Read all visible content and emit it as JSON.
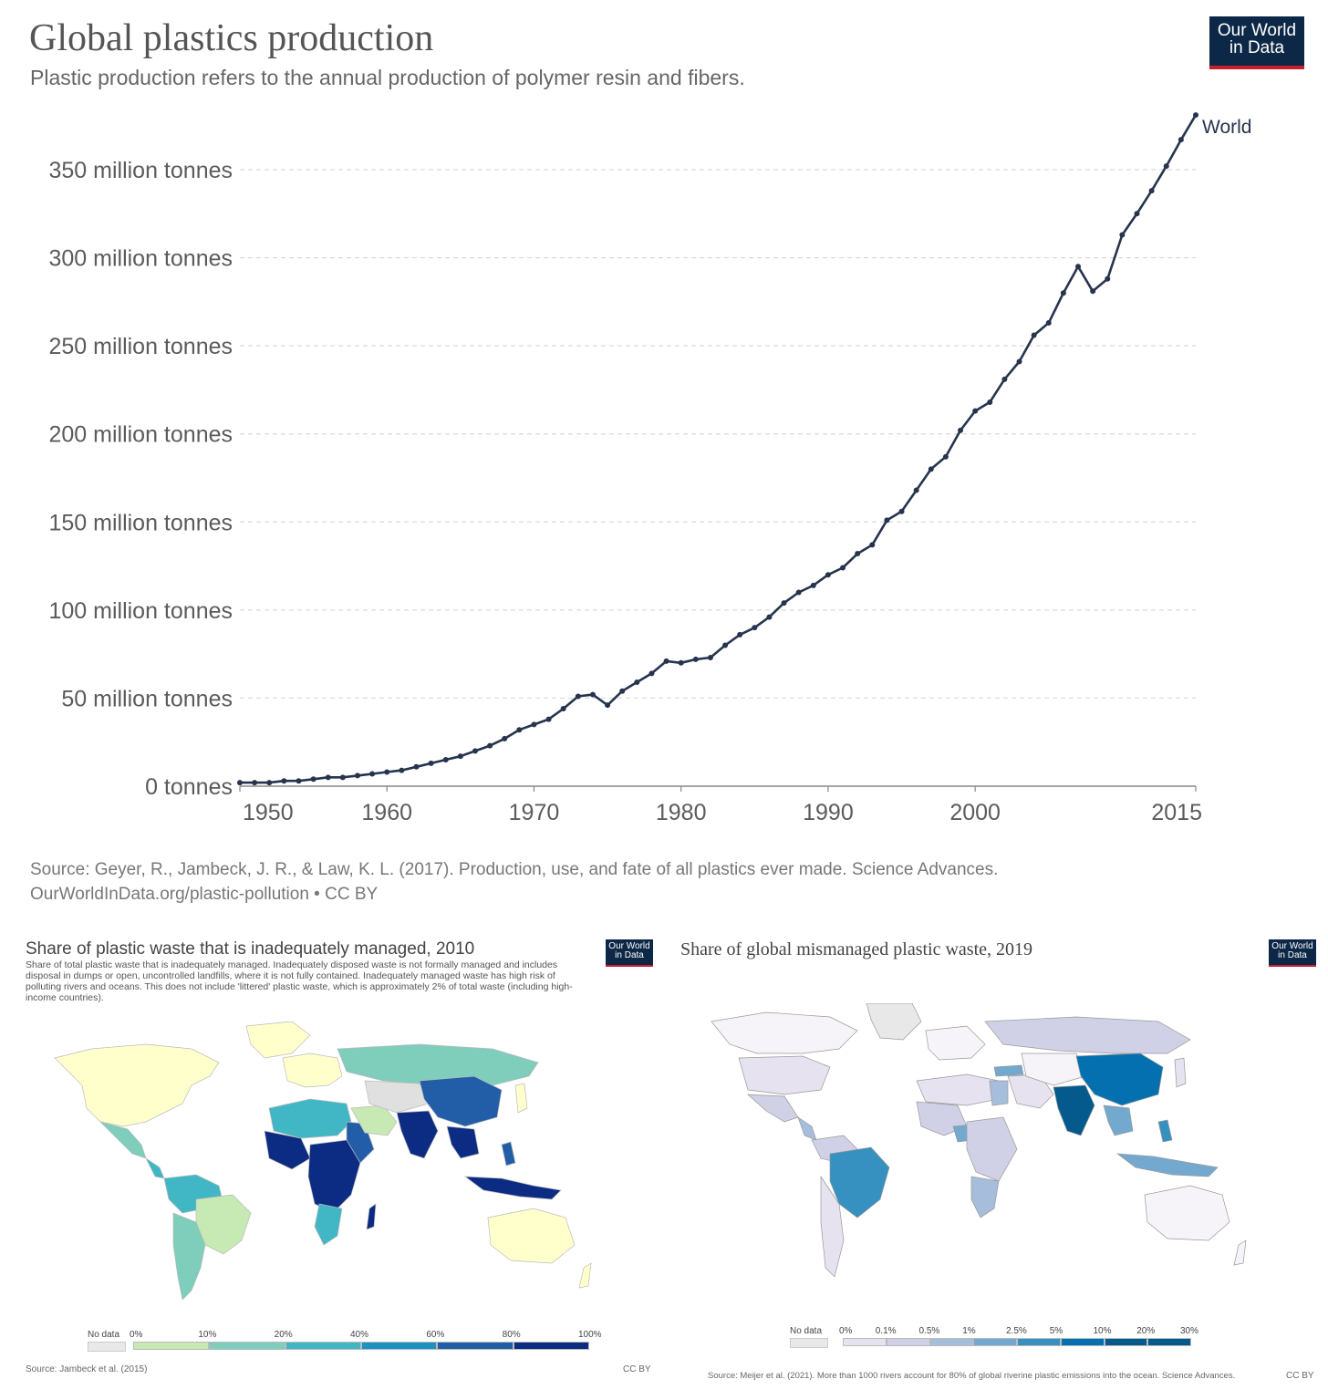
{
  "header": {
    "title": "Global plastics production",
    "subtitle": "Plastic production refers to the annual production of polymer resin and fibers.",
    "logo_line1": "Our World",
    "logo_line2": "in Data"
  },
  "chart_data": [
    {
      "type": "line",
      "title": "Global plastics production",
      "subtitle": "Plastic production refers to the annual production of polymer resin and fibers.",
      "xlabel": "",
      "ylabel": "",
      "xlim": [
        1950,
        2015
      ],
      "ylim": [
        0,
        380
      ],
      "grid": "horizontal dashed",
      "legend": "line end label",
      "x_ticks": [
        "1950",
        "1960",
        "1970",
        "1980",
        "1990",
        "2000",
        "2015"
      ],
      "y_ticks": [
        "0 tonnes",
        "50 million tonnes",
        "100 million tonnes",
        "150 million tonnes",
        "200 million tonnes",
        "250 million tonnes",
        "300 million tonnes",
        "350 million tonnes"
      ],
      "y_tick_values": [
        0,
        50,
        100,
        150,
        200,
        250,
        300,
        350
      ],
      "x_tick_values": [
        1950,
        1960,
        1970,
        1980,
        1990,
        2000,
        2015
      ],
      "series": [
        {
          "name": "World",
          "color": "#27344d",
          "x": [
            1950,
            1951,
            1952,
            1953,
            1954,
            1955,
            1956,
            1957,
            1958,
            1959,
            1960,
            1961,
            1962,
            1963,
            1964,
            1965,
            1966,
            1967,
            1968,
            1969,
            1970,
            1971,
            1972,
            1973,
            1974,
            1975,
            1976,
            1977,
            1978,
            1979,
            1980,
            1981,
            1982,
            1983,
            1984,
            1985,
            1986,
            1987,
            1988,
            1989,
            1990,
            1991,
            1992,
            1993,
            1994,
            1995,
            1996,
            1997,
            1998,
            1999,
            2000,
            2001,
            2002,
            2003,
            2004,
            2005,
            2006,
            2007,
            2008,
            2009,
            2010,
            2011,
            2012,
            2013,
            2014,
            2015
          ],
          "values": [
            2,
            2,
            2,
            3,
            3,
            4,
            5,
            5,
            6,
            7,
            8,
            9,
            11,
            13,
            15,
            17,
            20,
            23,
            27,
            32,
            35,
            38,
            44,
            51,
            52,
            46,
            54,
            59,
            64,
            71,
            70,
            72,
            73,
            80,
            86,
            90,
            96,
            104,
            110,
            114,
            120,
            124,
            132,
            137,
            151,
            156,
            168,
            180,
            187,
            202,
            213,
            218,
            231,
            241,
            256,
            263,
            280,
            295,
            281,
            288,
            313,
            325,
            338,
            352,
            367,
            381
          ]
        }
      ],
      "source_line1": "Source: Geyer, R., Jambeck, J. R., & Law, K. L. (2017). Production, use, and fate of all plastics ever made. Science Advances.",
      "source_line2": "OurWorldInData.org/plastic-pollution • CC BY"
    },
    {
      "type": "choropleth map",
      "title": "Share of plastic waste that is inadequately managed, 2010",
      "description": "Share of total plastic waste that is inadequately managed. Inadequately disposed waste is not formally managed and includes disposal in dumps or open, uncontrolled landfills, where it is not fully contained. Inadequately managed waste has high risk of polluting rivers and oceans. This does not include 'littered' plastic waste, which is approximately 2% of total waste (including high-income countries).",
      "legend_no_data": "No data",
      "legend_labels": [
        "0%",
        "10%",
        "20%",
        "40%",
        "60%",
        "80%",
        "100%"
      ],
      "legend_values": [
        0,
        10,
        20,
        40,
        60,
        80,
        100
      ],
      "legend_colors": [
        "#ffffcc",
        "#c7e9b4",
        "#7fcdbb",
        "#41b6c4",
        "#1d91c0",
        "#225ea8",
        "#0c2c84"
      ],
      "source": "Source: Jambeck et al. (2015)",
      "license": "CC BY"
    },
    {
      "type": "choropleth map",
      "title": "Share of global mismanaged plastic waste, 2019",
      "legend_no_data": "No data",
      "legend_labels": [
        "0%",
        "0.1%",
        "0.5%",
        "1%",
        "2.5%",
        "5%",
        "10%",
        "20%",
        "30%"
      ],
      "legend_values": [
        0,
        0.1,
        0.5,
        1,
        2.5,
        5,
        10,
        20,
        30
      ],
      "legend_colors": [
        "#f7f4f9",
        "#e6e2f0",
        "#d0d1e6",
        "#a6bddb",
        "#74a9cf",
        "#3690c0",
        "#0570b0",
        "#045a8d"
      ],
      "source": "Source: Meijer et al. (2021). More than 1000 rivers account for 80% of global riverine plastic emissions into the ocean. Science Advances.",
      "license": "CC BY"
    }
  ]
}
